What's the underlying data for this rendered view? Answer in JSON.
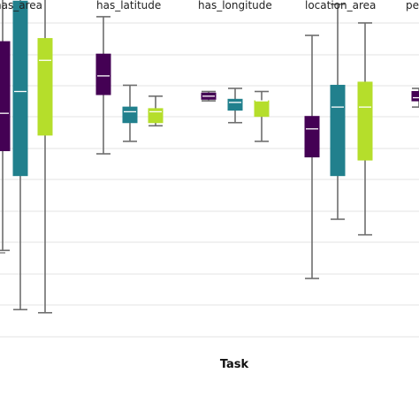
{
  "chart_data": {
    "type": "boxplot",
    "title": "",
    "xlabel": "Task",
    "ylabel": "",
    "categories": [
      "has_area",
      "has_latitude",
      "has_longitude",
      "location_area",
      "pe"
    ],
    "grid": "horizontal",
    "series": [
      {
        "color": "#440154",
        "stats": [
          {
            "min": 0.09,
            "q1": 0.41,
            "median": 0.53,
            "q3": 0.76,
            "max": 1.0
          },
          {
            "min": 0.4,
            "q1": 0.59,
            "median": 0.65,
            "q3": 0.72,
            "max": 0.84
          },
          {
            "min": 0.57,
            "q1": 0.575,
            "median": 0.585,
            "q3": 0.595,
            "max": 0.6
          },
          {
            "min": 0.0,
            "q1": 0.39,
            "median": 0.48,
            "q3": 0.52,
            "max": 0.78
          },
          {
            "min": 0.55,
            "q1": 0.57,
            "median": 0.58,
            "q3": 0.6,
            "max": 0.61
          }
        ]
      },
      {
        "color": "#21808d",
        "stats": [
          {
            "min": -0.1,
            "q1": 0.33,
            "median": 0.6,
            "q3": 0.89,
            "max": 1.3
          },
          {
            "min": 0.44,
            "q1": 0.5,
            "median": 0.535,
            "q3": 0.55,
            "max": 0.62
          },
          {
            "min": 0.5,
            "q1": 0.54,
            "median": 0.565,
            "q3": 0.575,
            "max": 0.61
          },
          {
            "min": 0.19,
            "q1": 0.33,
            "median": 0.55,
            "q3": 0.62,
            "max": 0.88
          }
        ]
      },
      {
        "color": "#b5de2b",
        "stats": [
          {
            "min": -0.11,
            "q1": 0.46,
            "median": 0.7,
            "q3": 0.77,
            "max": 1.3
          },
          {
            "min": 0.49,
            "q1": 0.5,
            "median": 0.535,
            "q3": 0.545,
            "max": 0.585
          },
          {
            "min": 0.44,
            "q1": 0.52,
            "median": 0.57,
            "q3": 0.57,
            "max": 0.6
          },
          {
            "min": 0.14,
            "q1": 0.38,
            "median": 0.55,
            "q3": 0.63,
            "max": 0.82
          }
        ]
      }
    ]
  }
}
